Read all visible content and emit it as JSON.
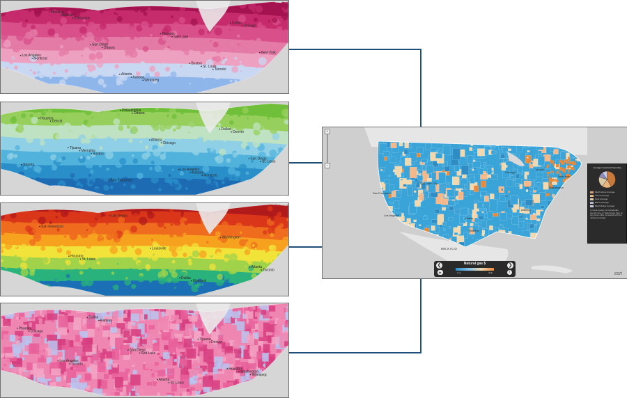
{
  "panels": [
    {
      "id": "pink-gradient",
      "palette": [
        "#a4134f",
        "#c62b6c",
        "#d84f8a",
        "#e47aa6",
        "#eea0c0",
        "#c9d8f2",
        "#8fb6ea"
      ],
      "labels": [
        "Edmonton",
        "Winnipeg",
        "Toronto",
        "Montreal",
        "Ottawa",
        "Salt Lake",
        "Chicago",
        "Denver",
        "Kansas",
        "St. Louis",
        "Los Angeles",
        "San Diego",
        "Phoenix",
        "Dallas",
        "Houston",
        "Atlanta",
        "Boston",
        "New York"
      ]
    },
    {
      "id": "green-blue",
      "palette": [
        "#6fbf3a",
        "#96cf5b",
        "#bfe3c2",
        "#8fd0e6",
        "#51b3dc",
        "#2a8fc9",
        "#1d6bb3"
      ],
      "labels": [
        "Ottawa",
        "Montreal",
        "Toronto",
        "Boston",
        "Chicago",
        "Denver",
        "Detroit",
        "Philadelphia",
        "Kansas",
        "St. Louis",
        "Memphis",
        "Atlanta",
        "Dallas",
        "Houston",
        "San Francisco",
        "Los Angeles",
        "San Diego",
        "Tijuana"
      ]
    },
    {
      "id": "heat",
      "palette": [
        "#b01a1a",
        "#d9361a",
        "#ef6b1e",
        "#f7a21f",
        "#f2e33a",
        "#a0d34a",
        "#2ab27c",
        "#1b6fb5"
      ],
      "labels": [
        "Montreal",
        "Toronto",
        "St. Louis",
        "Louisville",
        "Washington",
        "San Francisco",
        "Las Vegas",
        "Dallas",
        "Atlanta",
        "Houston"
      ]
    },
    {
      "id": "pink-county",
      "palette": [
        "#e8609a",
        "#ef86b2",
        "#f3a6c6",
        "#d63d7f",
        "#b8c4ee"
      ],
      "labels": [
        "Winnipeg",
        "Toronto",
        "Salt Lake",
        "Denver",
        "Chicago",
        "Kansas",
        "St. Louis",
        "Washington",
        "Los Angeles",
        "San Diego",
        "Tijuana",
        "Phoenix",
        "Dallas",
        "Atlanta",
        "Houston"
      ]
    }
  ],
  "main_map": {
    "palette": [
      "#3aa4d8",
      "#f0d9b0",
      "#e88a3a",
      "#f4b88a",
      "#2d8dc4"
    ],
    "country_labels": [
      "MEXICO"
    ],
    "city_labels": [
      "San Francisco",
      "Los Angeles",
      "Salt Lake City",
      "Chicago",
      "Toronto",
      "New York",
      "Washington",
      "Dallas",
      "Houston",
      "Atlanta"
    ],
    "legend": {
      "title": "Average Household Spending",
      "items": [
        {
          "color": "#e0a06a",
          "label": "Much Above Average"
        },
        {
          "color": "#eab67d",
          "label": "Above Average"
        },
        {
          "color": "#dccba8",
          "label": "Near Average"
        },
        {
          "color": "#b3b6d6",
          "label": "Below Average"
        },
        {
          "color": "#c9cbe6",
          "label": "Much Below Average"
        }
      ],
      "pie": [
        {
          "value": 0.42,
          "color": "#c87a3c"
        },
        {
          "value": 0.18,
          "color": "#eab67d"
        },
        {
          "value": 0.2,
          "color": "#dccba8"
        },
        {
          "value": 0.1,
          "color": "#8c8fbf"
        },
        {
          "value": 0.1,
          "color": "#c9cbe6"
        }
      ],
      "note": "In Cook County, IL households spend more on Natural gas than on any other utility compared with the national average."
    },
    "bottom_bar": {
      "title": "Natural gas $",
      "prev": "❮",
      "next": "❯",
      "low_label": "Low",
      "high_label": "High",
      "ramp_colors": [
        "#2d8dc4",
        "#7fc0e6",
        "#f0d9b0",
        "#e88a3a"
      ]
    },
    "watermark": "esri",
    "zoom": {
      "plus": "+",
      "minus": "−"
    }
  },
  "connector_color": "#1f4e79"
}
